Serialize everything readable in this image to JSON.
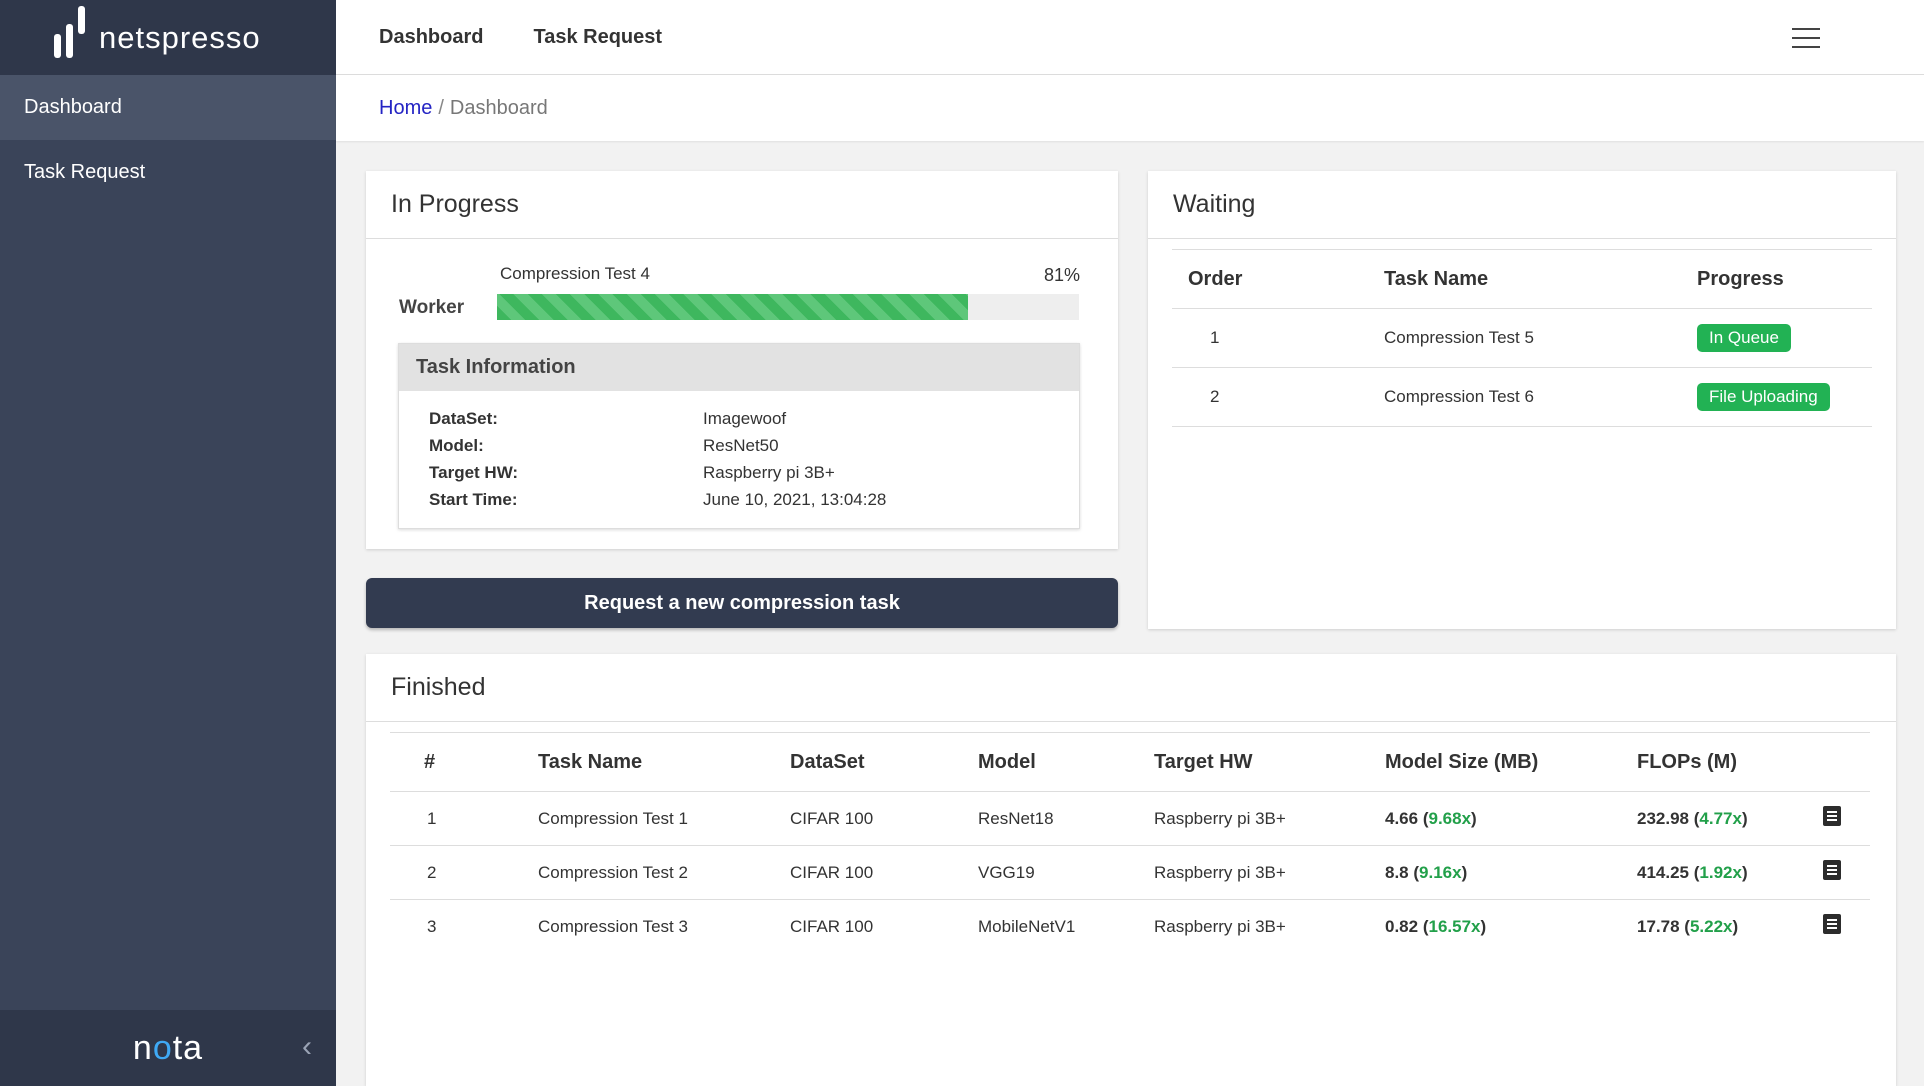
{
  "brand": {
    "name": "netspresso",
    "footer_logo_pre": "n",
    "footer_logo_o": "o",
    "footer_logo_post": "ta"
  },
  "sidebar": {
    "items": [
      {
        "label": "Dashboard"
      },
      {
        "label": "Task Request"
      }
    ]
  },
  "topnav": {
    "items": [
      {
        "label": "Dashboard"
      },
      {
        "label": "Task Request"
      }
    ]
  },
  "breadcrumb": {
    "home": "Home",
    "sep": "/",
    "current": "Dashboard"
  },
  "in_progress": {
    "title": "In Progress",
    "worker_label": "Worker",
    "task_name": "Compression Test 4",
    "percent_label": "81%",
    "progress": 0.81,
    "info_title": "Task Information",
    "info": [
      {
        "key": "DataSet:",
        "value": "Imagewoof"
      },
      {
        "key": "Model:",
        "value": "ResNet50"
      },
      {
        "key": "Target HW:",
        "value": "Raspberry pi 3B+"
      },
      {
        "key": "Start Time:",
        "value": "June 10, 2021, 13:04:28"
      }
    ]
  },
  "request_button": {
    "label": "Request a new compression task"
  },
  "waiting": {
    "title": "Waiting",
    "headers": {
      "order": "Order",
      "task": "Task Name",
      "progress": "Progress"
    },
    "rows": [
      {
        "order": "1",
        "task": "Compression Test 5",
        "status": "In Queue"
      },
      {
        "order": "2",
        "task": "Compression Test 6",
        "status": "File Uploading"
      }
    ]
  },
  "finished": {
    "title": "Finished",
    "headers": {
      "num": "#",
      "task": "Task Name",
      "dataset": "DataSet",
      "model": "Model",
      "hw": "Target HW",
      "size": "Model Size (MB)",
      "flops": "FLOPs (M)"
    },
    "rows": [
      {
        "num": "1",
        "task": "Compression Test 1",
        "dataset": "CIFAR 100",
        "model": "ResNet18",
        "hw": "Raspberry pi 3B+",
        "size": "4.66",
        "size_ratio": "9.68x",
        "flops": "232.98",
        "flops_ratio": "4.77x"
      },
      {
        "num": "2",
        "task": "Compression Test 2",
        "dataset": "CIFAR 100",
        "model": "VGG19",
        "hw": "Raspberry pi 3B+",
        "size": "8.8",
        "size_ratio": "9.16x",
        "flops": "414.25",
        "flops_ratio": "1.92x"
      },
      {
        "num": "3",
        "task": "Compression Test 3",
        "dataset": "CIFAR 100",
        "model": "MobileNetV1",
        "hw": "Raspberry pi 3B+",
        "size": "0.82",
        "size_ratio": "16.57x",
        "flops": "17.78",
        "flops_ratio": "5.22x"
      }
    ]
  }
}
